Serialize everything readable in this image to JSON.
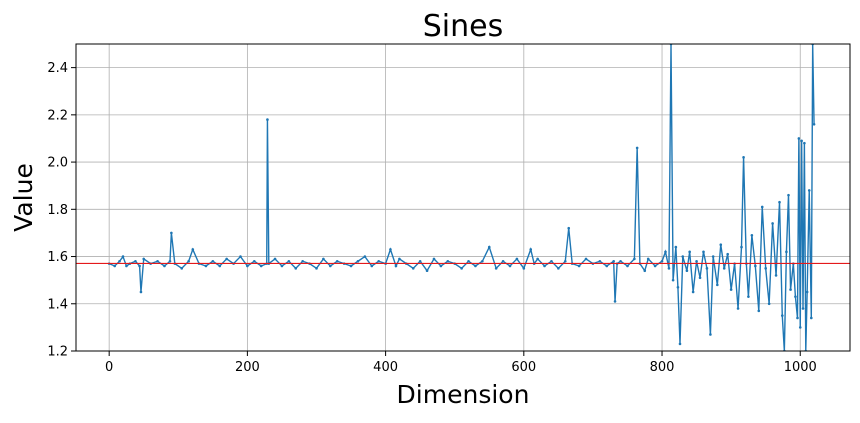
{
  "chart_data": {
    "type": "line",
    "title": "Sines",
    "xlabel": "Dimension",
    "ylabel": "Value",
    "xlim": [
      -48,
      1072
    ],
    "ylim": [
      1.2,
      2.5
    ],
    "xticks": [
      0,
      200,
      400,
      600,
      800,
      1000
    ],
    "yticks": [
      1.2,
      1.4,
      1.6,
      1.8,
      2.0,
      2.2,
      2.4
    ],
    "xtick_labels": [
      "0",
      "200",
      "400",
      "600",
      "800",
      "1000"
    ],
    "ytick_labels": [
      "1.2",
      "1.4",
      "1.6",
      "1.8",
      "2.0",
      "2.2",
      "2.4"
    ],
    "grid": true,
    "reference_line": {
      "y": 1.5708,
      "color": "#e41a1c"
    },
    "series": [
      {
        "color": "#1f77b4",
        "points": [
          [
            0,
            1.57
          ],
          [
            8,
            1.56
          ],
          [
            15,
            1.58
          ],
          [
            20,
            1.6
          ],
          [
            25,
            1.56
          ],
          [
            30,
            1.57
          ],
          [
            38,
            1.58
          ],
          [
            44,
            1.56
          ],
          [
            46,
            1.45
          ],
          [
            50,
            1.59
          ],
          [
            60,
            1.57
          ],
          [
            70,
            1.58
          ],
          [
            80,
            1.56
          ],
          [
            88,
            1.58
          ],
          [
            90,
            1.7
          ],
          [
            95,
            1.57
          ],
          [
            105,
            1.55
          ],
          [
            115,
            1.58
          ],
          [
            121,
            1.63
          ],
          [
            130,
            1.57
          ],
          [
            140,
            1.56
          ],
          [
            150,
            1.58
          ],
          [
            160,
            1.56
          ],
          [
            170,
            1.59
          ],
          [
            180,
            1.57
          ],
          [
            190,
            1.6
          ],
          [
            200,
            1.56
          ],
          [
            210,
            1.58
          ],
          [
            220,
            1.56
          ],
          [
            228,
            1.57
          ],
          [
            229,
            2.18
          ],
          [
            231,
            1.57
          ],
          [
            240,
            1.59
          ],
          [
            250,
            1.56
          ],
          [
            260,
            1.58
          ],
          [
            270,
            1.55
          ],
          [
            280,
            1.58
          ],
          [
            290,
            1.57
          ],
          [
            300,
            1.55
          ],
          [
            310,
            1.59
          ],
          [
            320,
            1.56
          ],
          [
            330,
            1.58
          ],
          [
            340,
            1.57
          ],
          [
            350,
            1.56
          ],
          [
            360,
            1.58
          ],
          [
            370,
            1.6
          ],
          [
            380,
            1.56
          ],
          [
            390,
            1.58
          ],
          [
            400,
            1.57
          ],
          [
            407,
            1.63
          ],
          [
            415,
            1.56
          ],
          [
            420,
            1.59
          ],
          [
            430,
            1.57
          ],
          [
            440,
            1.55
          ],
          [
            450,
            1.58
          ],
          [
            460,
            1.54
          ],
          [
            470,
            1.59
          ],
          [
            480,
            1.56
          ],
          [
            490,
            1.58
          ],
          [
            500,
            1.57
          ],
          [
            510,
            1.55
          ],
          [
            520,
            1.58
          ],
          [
            530,
            1.56
          ],
          [
            540,
            1.58
          ],
          [
            550,
            1.64
          ],
          [
            560,
            1.55
          ],
          [
            570,
            1.58
          ],
          [
            580,
            1.56
          ],
          [
            590,
            1.59
          ],
          [
            600,
            1.55
          ],
          [
            610,
            1.63
          ],
          [
            615,
            1.57
          ],
          [
            620,
            1.59
          ],
          [
            630,
            1.56
          ],
          [
            640,
            1.58
          ],
          [
            650,
            1.55
          ],
          [
            660,
            1.58
          ],
          [
            665,
            1.72
          ],
          [
            670,
            1.57
          ],
          [
            680,
            1.56
          ],
          [
            690,
            1.59
          ],
          [
            700,
            1.57
          ],
          [
            710,
            1.58
          ],
          [
            720,
            1.56
          ],
          [
            730,
            1.58
          ],
          [
            732,
            1.41
          ],
          [
            735,
            1.57
          ],
          [
            740,
            1.58
          ],
          [
            750,
            1.56
          ],
          [
            760,
            1.59
          ],
          [
            764,
            2.06
          ],
          [
            768,
            1.57
          ],
          [
            775,
            1.54
          ],
          [
            780,
            1.59
          ],
          [
            790,
            1.56
          ],
          [
            800,
            1.58
          ],
          [
            805,
            1.62
          ],
          [
            810,
            1.55
          ],
          [
            813,
            2.5
          ],
          [
            816,
            1.5
          ],
          [
            820,
            1.64
          ],
          [
            823,
            1.47
          ],
          [
            826,
            1.23
          ],
          [
            830,
            1.6
          ],
          [
            836,
            1.54
          ],
          [
            840,
            1.62
          ],
          [
            845,
            1.45
          ],
          [
            850,
            1.58
          ],
          [
            855,
            1.51
          ],
          [
            860,
            1.62
          ],
          [
            865,
            1.55
          ],
          [
            870,
            1.27
          ],
          [
            874,
            1.6
          ],
          [
            880,
            1.48
          ],
          [
            885,
            1.65
          ],
          [
            890,
            1.55
          ],
          [
            895,
            1.61
          ],
          [
            900,
            1.46
          ],
          [
            905,
            1.57
          ],
          [
            910,
            1.38
          ],
          [
            915,
            1.64
          ],
          [
            918,
            2.02
          ],
          [
            922,
            1.57
          ],
          [
            925,
            1.43
          ],
          [
            930,
            1.69
          ],
          [
            935,
            1.56
          ],
          [
            940,
            1.37
          ],
          [
            945,
            1.81
          ],
          [
            950,
            1.55
          ],
          [
            955,
            1.4
          ],
          [
            960,
            1.74
          ],
          [
            965,
            1.52
          ],
          [
            970,
            1.83
          ],
          [
            974,
            1.35
          ],
          [
            977,
            1.2
          ],
          [
            980,
            1.62
          ],
          [
            983,
            1.86
          ],
          [
            986,
            1.46
          ],
          [
            990,
            1.57
          ],
          [
            993,
            1.43
          ],
          [
            996,
            1.34
          ],
          [
            998,
            2.1
          ],
          [
            1000,
            1.3
          ],
          [
            1002,
            2.09
          ],
          [
            1004,
            1.38
          ],
          [
            1006,
            2.08
          ],
          [
            1008,
            1.2
          ],
          [
            1010,
            1.45
          ],
          [
            1013,
            1.88
          ],
          [
            1016,
            1.34
          ],
          [
            1018,
            2.5
          ],
          [
            1020,
            2.16
          ]
        ]
      }
    ]
  }
}
